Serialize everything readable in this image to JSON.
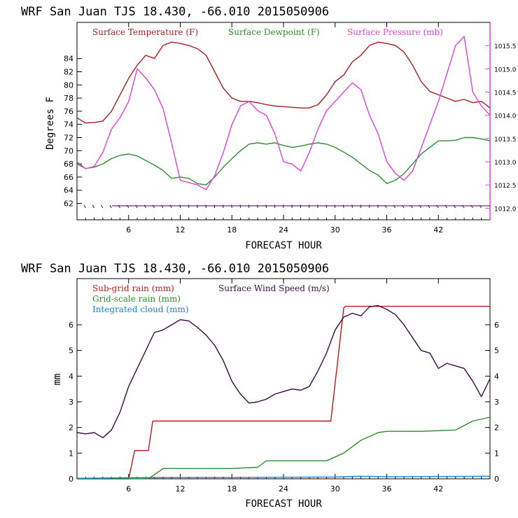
{
  "chart_data": [
    {
      "type": "line",
      "title": "WRF  San Juan TJS  18.430, -66.010  2015050906",
      "xlabel": "FORECAST HOUR",
      "ylabel": "Degrees F",
      "xlim": [
        0,
        48
      ],
      "ylim": [
        59.5,
        89.5
      ],
      "y2lim": [
        1011.75,
        1016.0
      ],
      "x_ticks": [
        6,
        12,
        18,
        24,
        30,
        36,
        42
      ],
      "y_ticks": [
        62,
        64,
        66,
        68,
        70,
        72,
        74,
        76,
        78,
        80,
        82,
        84
      ],
      "y2_ticks": [
        1012.0,
        1012.5,
        1013.0,
        1013.5,
        1014.0,
        1014.5,
        1015.0,
        1015.5
      ],
      "y2_tick_labels": [
        "1012.0",
        "1012.5",
        "1013.0",
        "1013.5",
        "1014.0",
        "1014.5",
        "1015.0",
        "1015.5"
      ],
      "legend_position": "top",
      "series": [
        {
          "name": "Surface Temperature (F)",
          "axis": "left",
          "color": "#a31f1f",
          "x": [
            0,
            1,
            2,
            3,
            4,
            5,
            6,
            7,
            8,
            9,
            10,
            11,
            12,
            13,
            14,
            15,
            16,
            17,
            18,
            19,
            20,
            21,
            22,
            23,
            24,
            25,
            26,
            27,
            28,
            29,
            30,
            31,
            32,
            33,
            34,
            35,
            36,
            37,
            38,
            39,
            40,
            41,
            42,
            43,
            44,
            45,
            46,
            47,
            48
          ],
          "values": [
            75.0,
            74.2,
            74.3,
            74.5,
            76.0,
            78.5,
            81.0,
            83.0,
            84.5,
            84.0,
            86.0,
            86.5,
            86.3,
            86.0,
            85.5,
            84.5,
            82.0,
            79.5,
            78.0,
            77.5,
            77.5,
            77.3,
            77.0,
            76.8,
            76.7,
            76.6,
            76.5,
            76.5,
            77.0,
            78.5,
            80.5,
            81.5,
            83.5,
            84.5,
            86.0,
            86.5,
            86.3,
            86.0,
            85.0,
            83.0,
            80.5,
            79.0,
            78.5,
            78.0,
            77.5,
            77.8,
            77.3,
            77.5,
            76.5
          ]
        },
        {
          "name": "Surface Dewpoint (F)",
          "axis": "left",
          "color": "#2e8b2e",
          "x": [
            0,
            1,
            2,
            3,
            4,
            5,
            6,
            7,
            8,
            9,
            10,
            11,
            12,
            13,
            14,
            15,
            16,
            17,
            18,
            19,
            20,
            21,
            22,
            23,
            24,
            25,
            26,
            27,
            28,
            29,
            30,
            31,
            32,
            33,
            34,
            35,
            36,
            37,
            38,
            39,
            40,
            41,
            42,
            43,
            44,
            45,
            46,
            47,
            48
          ],
          "values": [
            68.0,
            67.3,
            67.5,
            68.0,
            68.8,
            69.3,
            69.5,
            69.2,
            68.5,
            67.8,
            67.0,
            65.8,
            66.0,
            65.8,
            65.0,
            64.8,
            66.0,
            67.5,
            68.8,
            70.0,
            71.0,
            71.2,
            71.0,
            71.2,
            70.8,
            70.5,
            70.7,
            71.0,
            71.2,
            71.0,
            70.5,
            69.8,
            69.0,
            68.0,
            67.0,
            66.3,
            65.0,
            65.5,
            66.5,
            68.0,
            69.5,
            70.5,
            71.5,
            71.5,
            71.6,
            72.0,
            72.0,
            71.8,
            71.5
          ]
        },
        {
          "name": "Surface Pressure (mb)",
          "axis": "right",
          "color": "#e040e0",
          "x": [
            0,
            1,
            2,
            3,
            4,
            5,
            6,
            7,
            8,
            9,
            10,
            11,
            12,
            13,
            14,
            15,
            16,
            17,
            18,
            19,
            20,
            21,
            22,
            23,
            24,
            25,
            26,
            27,
            28,
            29,
            30,
            31,
            32,
            33,
            34,
            35,
            36,
            37,
            38,
            39,
            40,
            41,
            42,
            43,
            44,
            45,
            46,
            47,
            48
          ],
          "values": [
            1013.0,
            1012.85,
            1012.9,
            1013.2,
            1013.7,
            1013.95,
            1014.3,
            1015.0,
            1014.8,
            1014.55,
            1014.15,
            1013.4,
            1012.6,
            1012.55,
            1012.5,
            1012.4,
            1012.7,
            1013.2,
            1013.8,
            1014.2,
            1014.3,
            1014.1,
            1014.0,
            1013.6,
            1013.0,
            1012.95,
            1012.8,
            1013.2,
            1013.7,
            1014.1,
            1014.3,
            1014.5,
            1014.7,
            1014.55,
            1014.0,
            1013.6,
            1013.0,
            1012.75,
            1012.6,
            1012.8,
            1013.3,
            1013.8,
            1014.3,
            1014.9,
            1015.5,
            1015.7,
            1014.5,
            1014.2,
            1014.0
          ]
        }
      ]
    },
    {
      "type": "line",
      "title": "WRF  San Juan TJS  18.430, -66.010  2015050906",
      "xlabel": "FORECAST HOUR",
      "ylabel": "mm",
      "xlim": [
        0,
        48
      ],
      "ylim": [
        0,
        7.8
      ],
      "y2lim": [
        0,
        7.8
      ],
      "x_ticks": [
        6,
        12,
        18,
        24,
        30,
        36,
        42
      ],
      "y_ticks": [
        0,
        1,
        2,
        3,
        4,
        5,
        6
      ],
      "y2_ticks": [
        0,
        1,
        2,
        3,
        4,
        5,
        6
      ],
      "legend_position": "top-left",
      "series": [
        {
          "name": "Sub-grid rain (mm)",
          "axis": "left",
          "color": "#c01818",
          "x": [
            0,
            6,
            6.7,
            7.3,
            8.3,
            8.8,
            9.5,
            18,
            24,
            29.5,
            31,
            31.2,
            48
          ],
          "values": [
            0,
            0,
            1.1,
            1.1,
            1.1,
            2.25,
            2.25,
            2.25,
            2.25,
            2.25,
            6.65,
            6.72,
            6.72
          ]
        },
        {
          "name": "Surface Wind Speed (m/s)",
          "axis": "right",
          "color": "#3a0a45",
          "x": [
            0,
            1,
            2,
            3,
            4,
            5,
            6,
            7,
            8,
            9,
            10,
            11,
            12,
            13,
            14,
            15,
            16,
            17,
            18,
            19,
            20,
            21,
            22,
            23,
            24,
            25,
            26,
            27,
            28,
            29,
            30,
            31,
            32,
            33,
            34,
            35,
            36,
            37,
            38,
            39,
            40,
            41,
            42,
            43,
            44,
            45,
            46,
            47,
            48
          ],
          "values": [
            1.8,
            1.75,
            1.8,
            1.6,
            1.9,
            2.6,
            3.6,
            4.3,
            5.0,
            5.7,
            5.8,
            6.0,
            6.2,
            6.15,
            5.9,
            5.6,
            5.2,
            4.6,
            3.8,
            3.3,
            2.95,
            3.0,
            3.1,
            3.3,
            3.4,
            3.5,
            3.45,
            3.6,
            4.2,
            4.9,
            5.8,
            6.3,
            6.45,
            6.35,
            6.7,
            6.75,
            6.6,
            6.4,
            6.0,
            5.5,
            5.0,
            4.9,
            4.3,
            4.5,
            4.4,
            4.3,
            3.8,
            3.2,
            3.9
          ]
        },
        {
          "name": "Grid-scale rain (mm)",
          "axis": "left",
          "color": "#2e8b2e",
          "x": [
            0,
            8.3,
            9.8,
            10,
            18,
            21,
            22,
            24,
            29,
            30,
            31,
            33,
            35,
            36,
            40,
            44,
            46,
            48
          ],
          "values": [
            0,
            0,
            0.35,
            0.4,
            0.4,
            0.45,
            0.7,
            0.7,
            0.7,
            0.85,
            1.0,
            1.5,
            1.8,
            1.85,
            1.85,
            1.9,
            2.25,
            2.4
          ]
        },
        {
          "name": "Integrated cloud (mm)",
          "axis": "left",
          "color": "#1e7fd4",
          "x": [
            0,
            6,
            12,
            18,
            24,
            30,
            33,
            36,
            42,
            48
          ],
          "values": [
            0.02,
            0.04,
            0.05,
            0.05,
            0.06,
            0.07,
            0.1,
            0.08,
            0.09,
            0.1
          ]
        }
      ]
    }
  ]
}
